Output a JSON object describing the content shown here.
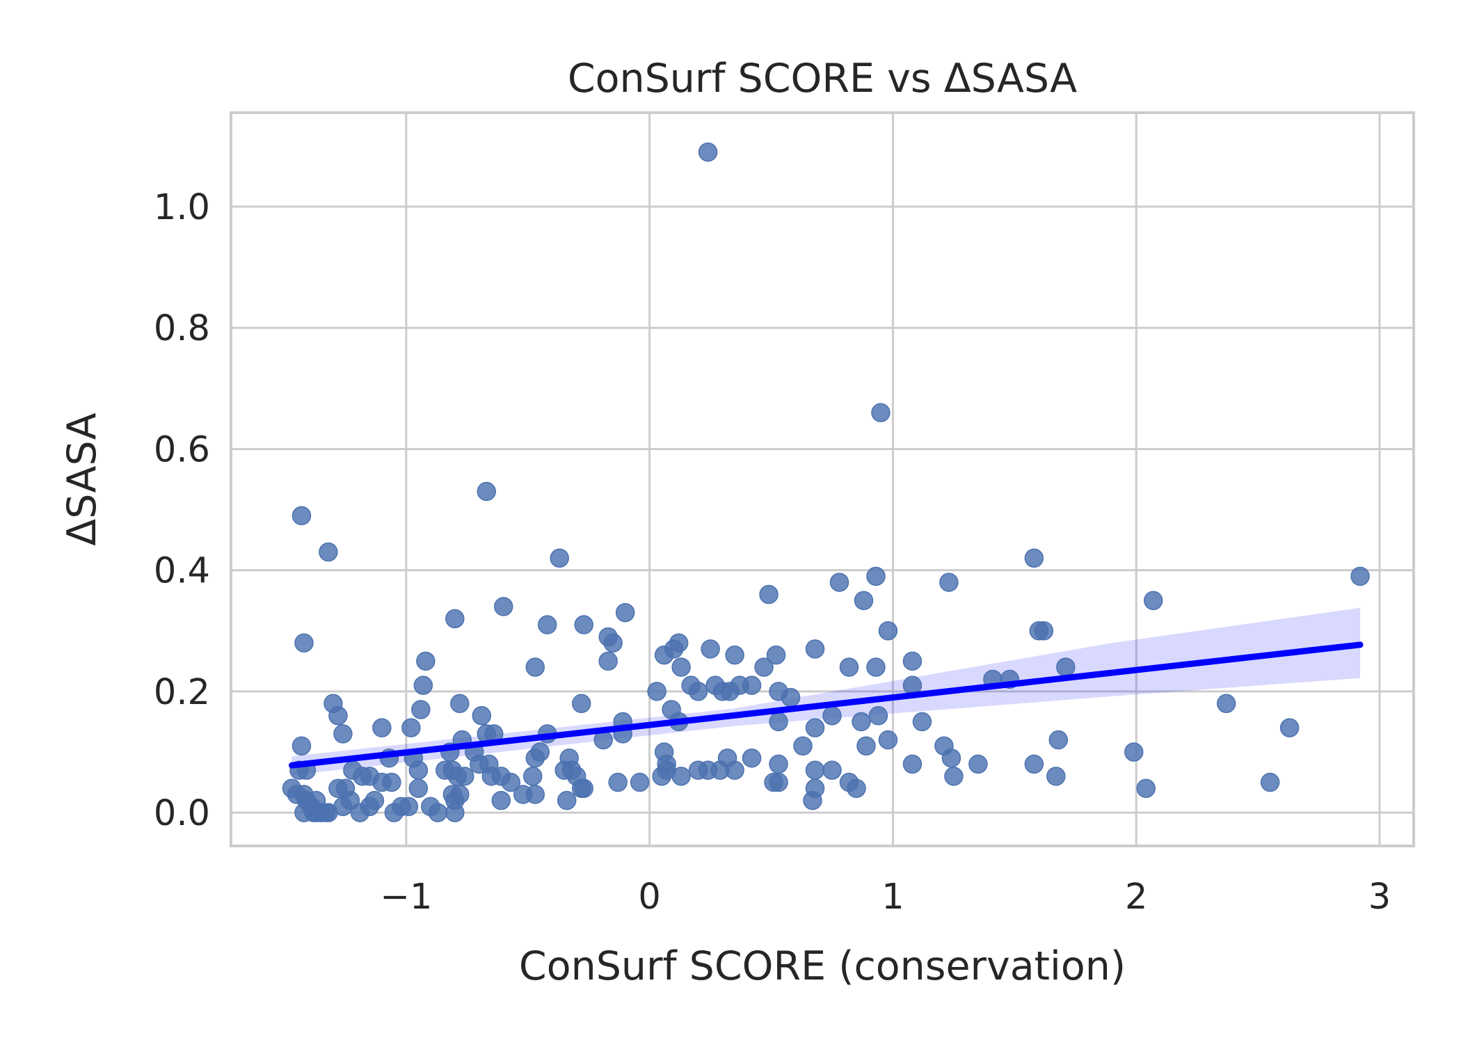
{
  "chart_data": {
    "type": "scatter",
    "title": "ConSurf SCORE vs ΔSASA",
    "xlabel": "ConSurf SCORE (conservation)",
    "ylabel": "ΔSASA",
    "xlim": [
      -1.72,
      3.14
    ],
    "ylim": [
      -0.055,
      1.155
    ],
    "xticks": [
      -1,
      0,
      1,
      2,
      3
    ],
    "xtick_labels": [
      "−1",
      "0",
      "1",
      "2",
      "3"
    ],
    "yticks": [
      0.0,
      0.2,
      0.4,
      0.6,
      0.8,
      1.0
    ],
    "ytick_labels": [
      "0.0",
      "0.2",
      "0.4",
      "0.6",
      "0.8",
      "1.0"
    ],
    "grid": true,
    "colors": {
      "points": "#4c72b0",
      "regression_line": "#0000ff",
      "confidence_band": "#0000ff",
      "grid": "#cccccc",
      "spine": "#cccccc",
      "text": "#262626"
    },
    "points": [
      {
        "x": 0.24,
        "y": 1.09
      },
      {
        "x": 0.95,
        "y": 0.66
      },
      {
        "x": -0.67,
        "y": 0.53
      },
      {
        "x": -1.43,
        "y": 0.49
      },
      {
        "x": -1.32,
        "y": 0.43
      },
      {
        "x": -0.37,
        "y": 0.42
      },
      {
        "x": 1.58,
        "y": 0.42
      },
      {
        "x": 0.93,
        "y": 0.39
      },
      {
        "x": 2.92,
        "y": 0.39
      },
      {
        "x": 1.23,
        "y": 0.38
      },
      {
        "x": 0.78,
        "y": 0.38
      },
      {
        "x": 0.49,
        "y": 0.36
      },
      {
        "x": 0.88,
        "y": 0.35
      },
      {
        "x": 2.07,
        "y": 0.35
      },
      {
        "x": -0.6,
        "y": 0.34
      },
      {
        "x": -0.1,
        "y": 0.33
      },
      {
        "x": -0.8,
        "y": 0.32
      },
      {
        "x": -0.42,
        "y": 0.31
      },
      {
        "x": -0.27,
        "y": 0.31
      },
      {
        "x": 1.62,
        "y": 0.3
      },
      {
        "x": 1.6,
        "y": 0.3
      },
      {
        "x": 0.98,
        "y": 0.3
      },
      {
        "x": -0.17,
        "y": 0.29
      },
      {
        "x": -0.15,
        "y": 0.28
      },
      {
        "x": -1.42,
        "y": 0.28
      },
      {
        "x": 0.12,
        "y": 0.28
      },
      {
        "x": 0.1,
        "y": 0.27
      },
      {
        "x": 0.68,
        "y": 0.27
      },
      {
        "x": 0.06,
        "y": 0.26
      },
      {
        "x": 0.25,
        "y": 0.27
      },
      {
        "x": 0.35,
        "y": 0.26
      },
      {
        "x": 0.52,
        "y": 0.26
      },
      {
        "x": -0.17,
        "y": 0.25
      },
      {
        "x": -0.92,
        "y": 0.25
      },
      {
        "x": 0.82,
        "y": 0.24
      },
      {
        "x": 1.08,
        "y": 0.25
      },
      {
        "x": 1.71,
        "y": 0.24
      },
      {
        "x": 0.47,
        "y": 0.24
      },
      {
        "x": -0.47,
        "y": 0.24
      },
      {
        "x": 0.13,
        "y": 0.24
      },
      {
        "x": 0.93,
        "y": 0.24
      },
      {
        "x": 1.41,
        "y": 0.22
      },
      {
        "x": 1.48,
        "y": 0.22
      },
      {
        "x": -0.93,
        "y": 0.21
      },
      {
        "x": 0.17,
        "y": 0.21
      },
      {
        "x": 0.27,
        "y": 0.21
      },
      {
        "x": 0.37,
        "y": 0.21
      },
      {
        "x": 0.42,
        "y": 0.21
      },
      {
        "x": 1.08,
        "y": 0.21
      },
      {
        "x": 0.2,
        "y": 0.2
      },
      {
        "x": 0.3,
        "y": 0.2
      },
      {
        "x": 0.53,
        "y": 0.2
      },
      {
        "x": 0.33,
        "y": 0.2
      },
      {
        "x": 0.03,
        "y": 0.2
      },
      {
        "x": 0.58,
        "y": 0.19
      },
      {
        "x": -0.28,
        "y": 0.18
      },
      {
        "x": -0.78,
        "y": 0.18
      },
      {
        "x": 2.37,
        "y": 0.18
      },
      {
        "x": -1.3,
        "y": 0.18
      },
      {
        "x": 0.09,
        "y": 0.17
      },
      {
        "x": -0.94,
        "y": 0.17
      },
      {
        "x": -0.69,
        "y": 0.16
      },
      {
        "x": -1.28,
        "y": 0.16
      },
      {
        "x": 0.75,
        "y": 0.16
      },
      {
        "x": 0.94,
        "y": 0.16
      },
      {
        "x": -0.11,
        "y": 0.15
      },
      {
        "x": 0.87,
        "y": 0.15
      },
      {
        "x": 0.12,
        "y": 0.15
      },
      {
        "x": 0.53,
        "y": 0.15
      },
      {
        "x": 1.12,
        "y": 0.15
      },
      {
        "x": 0.68,
        "y": 0.14
      },
      {
        "x": -0.42,
        "y": 0.13
      },
      {
        "x": -1.26,
        "y": 0.13
      },
      {
        "x": -1.1,
        "y": 0.14
      },
      {
        "x": -0.98,
        "y": 0.14
      },
      {
        "x": 2.63,
        "y": 0.14
      },
      {
        "x": -0.67,
        "y": 0.13
      },
      {
        "x": -0.64,
        "y": 0.13
      },
      {
        "x": -0.77,
        "y": 0.12
      },
      {
        "x": -0.11,
        "y": 0.13
      },
      {
        "x": -0.19,
        "y": 0.12
      },
      {
        "x": 0.98,
        "y": 0.12
      },
      {
        "x": 1.21,
        "y": 0.11
      },
      {
        "x": 1.68,
        "y": 0.12
      },
      {
        "x": -1.43,
        "y": 0.11
      },
      {
        "x": 0.89,
        "y": 0.11
      },
      {
        "x": 0.63,
        "y": 0.11
      },
      {
        "x": -0.82,
        "y": 0.1
      },
      {
        "x": 0.06,
        "y": 0.1
      },
      {
        "x": 1.99,
        "y": 0.1
      },
      {
        "x": -0.72,
        "y": 0.1
      },
      {
        "x": -0.45,
        "y": 0.1
      },
      {
        "x": -1.07,
        "y": 0.09
      },
      {
        "x": -0.97,
        "y": 0.09
      },
      {
        "x": 0.32,
        "y": 0.09
      },
      {
        "x": 0.42,
        "y": 0.09
      },
      {
        "x": -0.33,
        "y": 0.09
      },
      {
        "x": -0.47,
        "y": 0.09
      },
      {
        "x": 1.24,
        "y": 0.09
      },
      {
        "x": -0.7,
        "y": 0.08
      },
      {
        "x": 1.35,
        "y": 0.08
      },
      {
        "x": 0.53,
        "y": 0.08
      },
      {
        "x": -0.66,
        "y": 0.08
      },
      {
        "x": 0.07,
        "y": 0.08
      },
      {
        "x": 1.08,
        "y": 0.08
      },
      {
        "x": 1.58,
        "y": 0.08
      },
      {
        "x": -1.44,
        "y": 0.07
      },
      {
        "x": -1.41,
        "y": 0.07
      },
      {
        "x": 0.2,
        "y": 0.07
      },
      {
        "x": 0.29,
        "y": 0.07
      },
      {
        "x": 0.35,
        "y": 0.07
      },
      {
        "x": 0.68,
        "y": 0.07
      },
      {
        "x": 0.75,
        "y": 0.07
      },
      {
        "x": -0.84,
        "y": 0.07
      },
      {
        "x": -0.81,
        "y": 0.07
      },
      {
        "x": -0.95,
        "y": 0.07
      },
      {
        "x": -0.35,
        "y": 0.07
      },
      {
        "x": -0.32,
        "y": 0.07
      },
      {
        "x": -1.22,
        "y": 0.07
      },
      {
        "x": 0.24,
        "y": 0.07
      },
      {
        "x": 0.07,
        "y": 0.07
      },
      {
        "x": 0.13,
        "y": 0.06
      },
      {
        "x": 1.25,
        "y": 0.06
      },
      {
        "x": -0.65,
        "y": 0.06
      },
      {
        "x": -0.61,
        "y": 0.06
      },
      {
        "x": -0.79,
        "y": 0.06
      },
      {
        "x": -1.18,
        "y": 0.06
      },
      {
        "x": -1.15,
        "y": 0.06
      },
      {
        "x": -0.3,
        "y": 0.06
      },
      {
        "x": 0.05,
        "y": 0.06
      },
      {
        "x": -0.48,
        "y": 0.06
      },
      {
        "x": -0.76,
        "y": 0.06
      },
      {
        "x": -0.13,
        "y": 0.05
      },
      {
        "x": -0.04,
        "y": 0.05
      },
      {
        "x": 1.67,
        "y": 0.06
      },
      {
        "x": 2.55,
        "y": 0.05
      },
      {
        "x": 0.51,
        "y": 0.05
      },
      {
        "x": 0.53,
        "y": 0.05
      },
      {
        "x": -0.57,
        "y": 0.05
      },
      {
        "x": -1.1,
        "y": 0.05
      },
      {
        "x": -1.06,
        "y": 0.05
      },
      {
        "x": 0.82,
        "y": 0.05
      },
      {
        "x": -1.47,
        "y": 0.04
      },
      {
        "x": -0.27,
        "y": 0.04
      },
      {
        "x": 0.85,
        "y": 0.04
      },
      {
        "x": 0.68,
        "y": 0.04
      },
      {
        "x": 2.04,
        "y": 0.04
      },
      {
        "x": -1.28,
        "y": 0.04
      },
      {
        "x": -1.25,
        "y": 0.04
      },
      {
        "x": -0.95,
        "y": 0.04
      },
      {
        "x": -0.28,
        "y": 0.04
      },
      {
        "x": -1.42,
        "y": 0.03
      },
      {
        "x": -1.45,
        "y": 0.03
      },
      {
        "x": -0.52,
        "y": 0.03
      },
      {
        "x": -0.47,
        "y": 0.03
      },
      {
        "x": -0.81,
        "y": 0.03
      },
      {
        "x": -0.78,
        "y": 0.03
      },
      {
        "x": -0.34,
        "y": 0.02
      },
      {
        "x": -0.61,
        "y": 0.02
      },
      {
        "x": 0.67,
        "y": 0.02
      },
      {
        "x": -1.41,
        "y": 0.02
      },
      {
        "x": -1.37,
        "y": 0.02
      },
      {
        "x": -1.23,
        "y": 0.02
      },
      {
        "x": -1.13,
        "y": 0.02
      },
      {
        "x": -0.8,
        "y": 0.02
      },
      {
        "x": -1.39,
        "y": 0.01
      },
      {
        "x": -1.26,
        "y": 0.01
      },
      {
        "x": -1.02,
        "y": 0.01
      },
      {
        "x": -0.99,
        "y": 0.01
      },
      {
        "x": -0.9,
        "y": 0.01
      },
      {
        "x": -1.15,
        "y": 0.01
      },
      {
        "x": -1.42,
        "y": 0.0
      },
      {
        "x": -1.38,
        "y": 0.0
      },
      {
        "x": -1.35,
        "y": 0.0
      },
      {
        "x": -1.32,
        "y": 0.0
      },
      {
        "x": -1.19,
        "y": 0.0
      },
      {
        "x": -1.05,
        "y": 0.0
      },
      {
        "x": -0.87,
        "y": 0.0
      },
      {
        "x": -0.8,
        "y": 0.0
      },
      {
        "x": -1.33,
        "y": 0.0
      },
      {
        "x": -1.37,
        "y": 0.0
      }
    ],
    "regression": {
      "x_range": [
        -1.47,
        2.92
      ],
      "y_at_range": [
        0.078,
        0.277
      ],
      "ci_lower": [
        {
          "x": -1.47,
          "y": 0.062
        },
        {
          "x": 0.35,
          "y": 0.143
        },
        {
          "x": 1.9,
          "y": 0.192
        },
        {
          "x": 2.92,
          "y": 0.222
        }
      ],
      "ci_upper": [
        {
          "x": -1.47,
          "y": 0.093
        },
        {
          "x": 0.35,
          "y": 0.172
        },
        {
          "x": 1.9,
          "y": 0.28
        },
        {
          "x": 2.92,
          "y": 0.338
        }
      ]
    }
  }
}
